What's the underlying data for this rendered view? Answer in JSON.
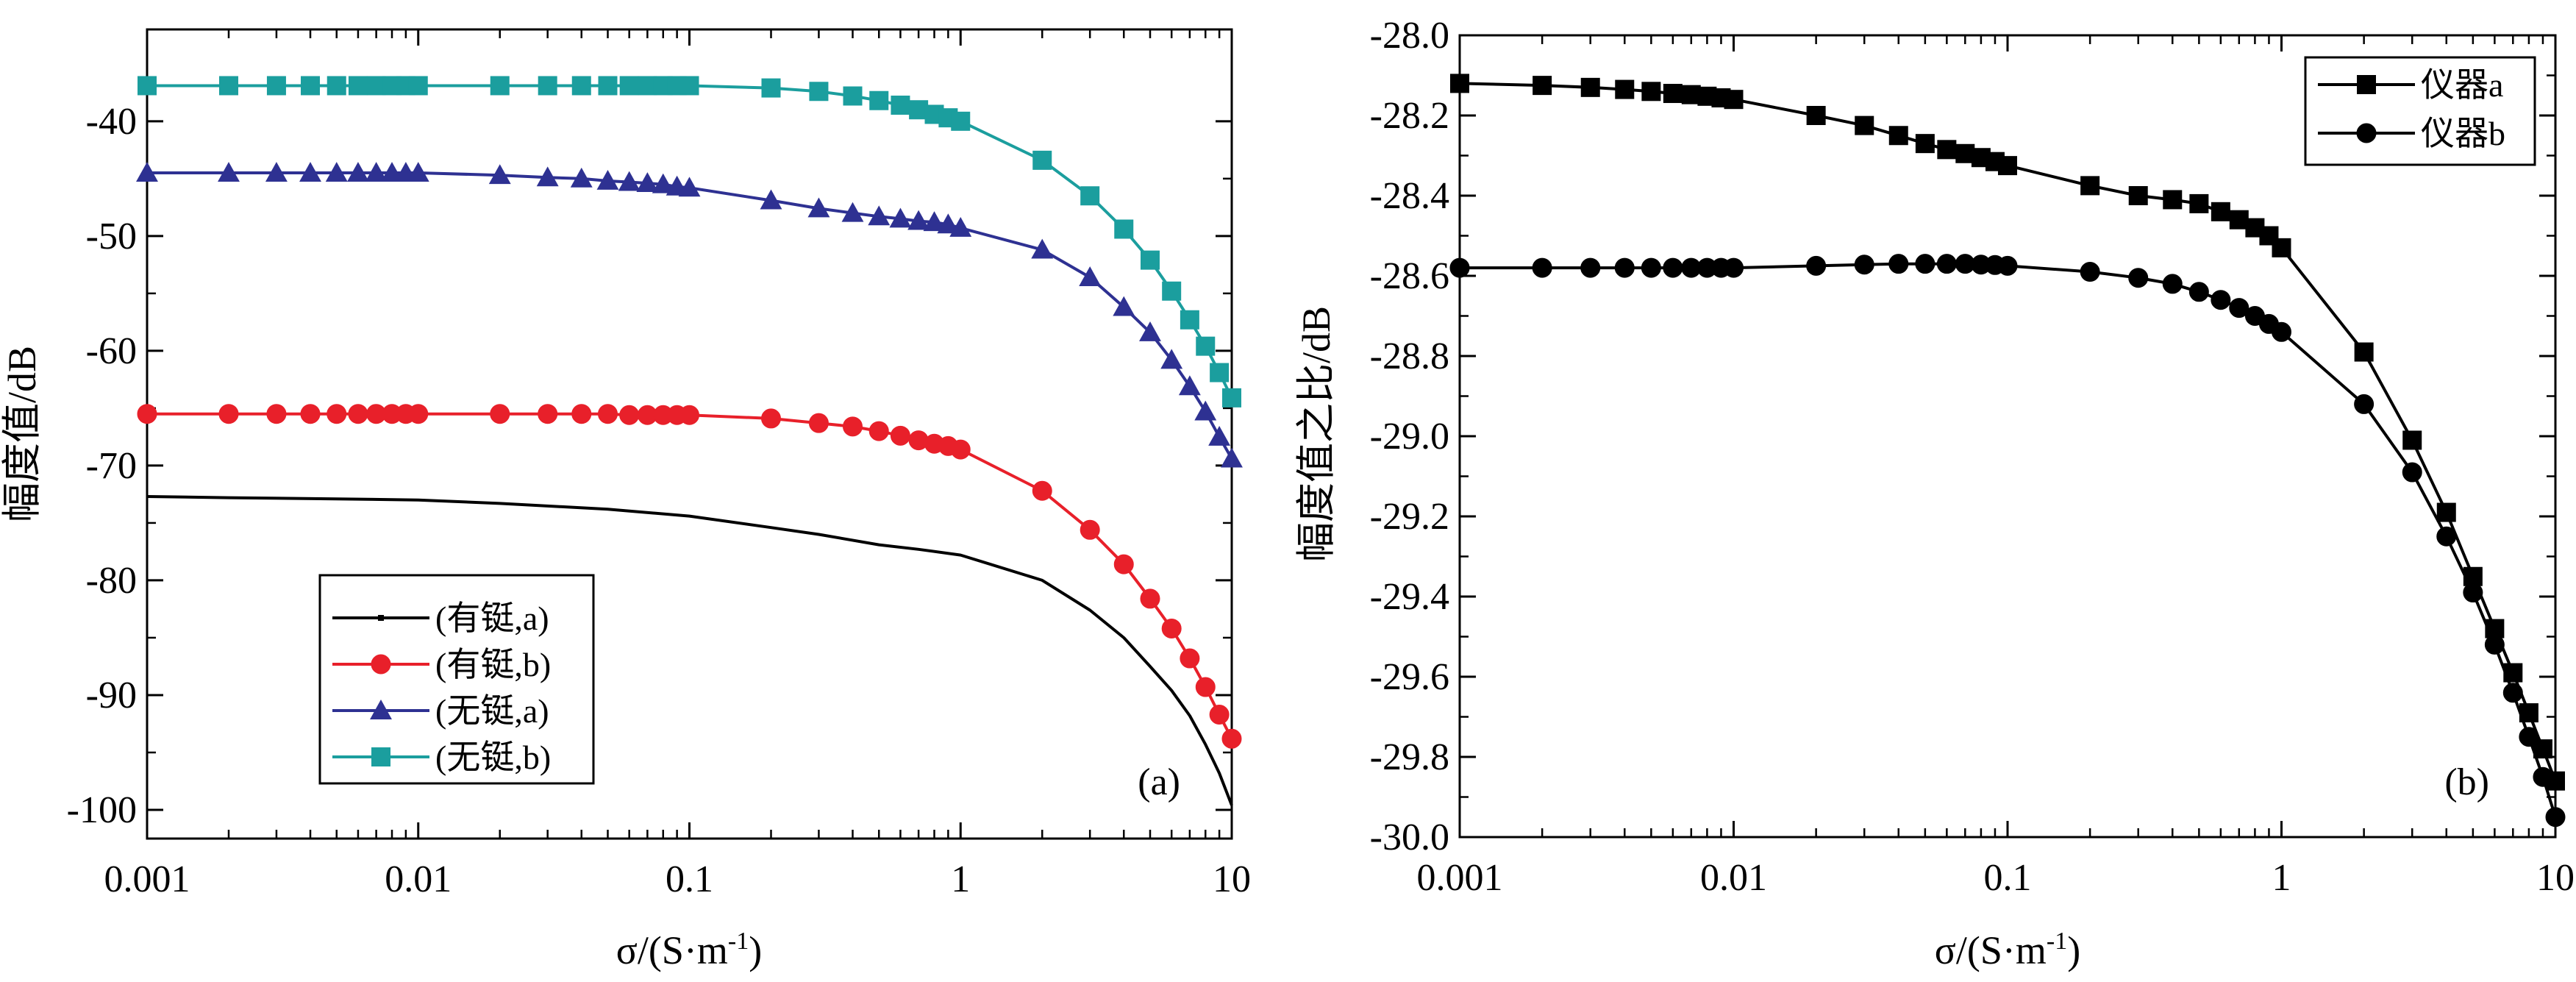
{
  "chart_data": [
    {
      "type": "line",
      "panel_label": "(a)",
      "xscale": "log",
      "xlim": [
        0.001,
        10
      ],
      "ylim": [
        -102.5,
        -32
      ],
      "xlabel_main": "σ/(S·m",
      "xlabel_sup": "-1",
      "xlabel_tail": ")",
      "ylabel": "幅度值/dB",
      "xticks": [
        0.001,
        0.01,
        0.1,
        1,
        10
      ],
      "xtick_labels": [
        "0.001",
        "0.01",
        "0.1",
        "1",
        "10"
      ],
      "yticks": [
        -100,
        -90,
        -80,
        -70,
        -60,
        -50,
        -40
      ],
      "ytick_labels": [
        "-100",
        "-90",
        "-80",
        "-70",
        "-60",
        "-50",
        "-40"
      ],
      "legend_position": "bottom-left",
      "series": [
        {
          "name": "(有铤,a)",
          "color": "#000000",
          "marker": "none",
          "x": [
            0.001,
            0.002,
            0.005,
            0.01,
            0.02,
            0.05,
            0.1,
            0.2,
            0.3,
            0.5,
            0.7,
            1,
            2,
            3,
            4,
            5,
            6,
            7,
            8,
            9,
            10
          ],
          "y": [
            -72.7,
            -72.8,
            -72.9,
            -73.0,
            -73.3,
            -73.8,
            -74.4,
            -75.4,
            -76.0,
            -76.9,
            -77.3,
            -77.8,
            -80.0,
            -82.6,
            -85.0,
            -87.5,
            -89.6,
            -91.8,
            -94.3,
            -96.8,
            -99.6
          ]
        },
        {
          "name": "(有铤,b)",
          "color": "#e8202a",
          "marker": "circle",
          "x": [
            0.001,
            0.002,
            0.003,
            0.004,
            0.005,
            0.006,
            0.007,
            0.008,
            0.009,
            0.01,
            0.02,
            0.03,
            0.04,
            0.05,
            0.06,
            0.07,
            0.08,
            0.09,
            0.1,
            0.2,
            0.3,
            0.4,
            0.5,
            0.6,
            0.7,
            0.8,
            0.9,
            1,
            2,
            3,
            4,
            5,
            6,
            7,
            8,
            9,
            10
          ],
          "y": [
            -65.5,
            -65.5,
            -65.5,
            -65.5,
            -65.5,
            -65.5,
            -65.5,
            -65.5,
            -65.5,
            -65.5,
            -65.5,
            -65.5,
            -65.5,
            -65.5,
            -65.6,
            -65.6,
            -65.6,
            -65.6,
            -65.6,
            -65.9,
            -66.3,
            -66.6,
            -67.0,
            -67.4,
            -67.8,
            -68.1,
            -68.3,
            -68.6,
            -72.2,
            -75.6,
            -78.6,
            -81.6,
            -84.2,
            -86.8,
            -89.3,
            -91.7,
            -93.8
          ]
        },
        {
          "name": "(无铤,a)",
          "color": "#2e3192",
          "marker": "triangle",
          "x": [
            0.001,
            0.002,
            0.003,
            0.004,
            0.005,
            0.006,
            0.007,
            0.008,
            0.009,
            0.01,
            0.02,
            0.03,
            0.04,
            0.05,
            0.06,
            0.07,
            0.08,
            0.09,
            0.1,
            0.2,
            0.3,
            0.4,
            0.5,
            0.6,
            0.7,
            0.8,
            0.9,
            1,
            2,
            3,
            4,
            5,
            6,
            7,
            8,
            9,
            10
          ],
          "y": [
            -44.5,
            -44.5,
            -44.5,
            -44.5,
            -44.5,
            -44.5,
            -44.5,
            -44.5,
            -44.5,
            -44.5,
            -44.7,
            -44.9,
            -45.0,
            -45.2,
            -45.3,
            -45.4,
            -45.5,
            -45.7,
            -45.8,
            -46.9,
            -47.6,
            -48.0,
            -48.3,
            -48.5,
            -48.7,
            -48.8,
            -49.0,
            -49.3,
            -51.2,
            -53.6,
            -56.2,
            -58.4,
            -60.8,
            -63.1,
            -65.3,
            -67.5,
            -69.4
          ]
        },
        {
          "name": "(无铤,b)",
          "color": "#1b9e9e",
          "marker": "square",
          "x": [
            0.001,
            0.002,
            0.003,
            0.004,
            0.005,
            0.006,
            0.007,
            0.008,
            0.009,
            0.01,
            0.02,
            0.03,
            0.04,
            0.05,
            0.06,
            0.07,
            0.08,
            0.09,
            0.1,
            0.2,
            0.3,
            0.4,
            0.5,
            0.6,
            0.7,
            0.8,
            0.9,
            1,
            2,
            3,
            4,
            5,
            6,
            7,
            8,
            9,
            10
          ],
          "y": [
            -36.9,
            -36.9,
            -36.9,
            -36.9,
            -36.9,
            -36.9,
            -36.9,
            -36.9,
            -36.9,
            -36.9,
            -36.9,
            -36.9,
            -36.9,
            -36.9,
            -36.9,
            -36.9,
            -36.9,
            -36.9,
            -36.9,
            -37.1,
            -37.4,
            -37.8,
            -38.2,
            -38.6,
            -39.0,
            -39.4,
            -39.7,
            -40.0,
            -43.4,
            -46.5,
            -49.4,
            -52.1,
            -54.8,
            -57.3,
            -59.6,
            -61.9,
            -64.1
          ]
        }
      ]
    },
    {
      "type": "line",
      "panel_label": "(b)",
      "xscale": "log",
      "xlim": [
        0.001,
        10
      ],
      "ylim": [
        -30.0,
        -28.0
      ],
      "xlabel_main": "σ/(S·m",
      "xlabel_sup": "-1",
      "xlabel_tail": ")",
      "ylabel": "幅度值之比/dB",
      "xticks": [
        0.001,
        0.01,
        0.1,
        1,
        10
      ],
      "xtick_labels": [
        "0.001",
        "0.01",
        "0.1",
        "1",
        "10"
      ],
      "yticks": [
        -30.0,
        -29.8,
        -29.6,
        -29.4,
        -29.2,
        -29.0,
        -28.8,
        -28.6,
        -28.4,
        -28.2,
        -28.0
      ],
      "ytick_labels": [
        "-30.0",
        "-29.8",
        "-29.6",
        "-29.4",
        "-29.2",
        "-29.0",
        "-28.8",
        "-28.6",
        "-28.4",
        "-28.2",
        "-28.0"
      ],
      "legend_position": "top-right",
      "series": [
        {
          "name": "仪器a",
          "color": "#000000",
          "marker": "square",
          "x": [
            0.001,
            0.002,
            0.003,
            0.004,
            0.005,
            0.006,
            0.007,
            0.008,
            0.009,
            0.01,
            0.02,
            0.03,
            0.04,
            0.05,
            0.06,
            0.07,
            0.08,
            0.09,
            0.1,
            0.2,
            0.3,
            0.4,
            0.5,
            0.6,
            0.7,
            0.8,
            0.9,
            1,
            2,
            3,
            4,
            5,
            6,
            7,
            8,
            9,
            10
          ],
          "y": [
            -28.12,
            -28.125,
            -28.13,
            -28.135,
            -28.14,
            -28.145,
            -28.148,
            -28.152,
            -28.156,
            -28.16,
            -28.2,
            -28.225,
            -28.25,
            -28.27,
            -28.285,
            -28.295,
            -28.305,
            -28.315,
            -28.325,
            -28.375,
            -28.4,
            -28.41,
            -28.42,
            -28.44,
            -28.46,
            -28.48,
            -28.5,
            -28.53,
            -28.79,
            -29.01,
            -29.19,
            -29.35,
            -29.48,
            -29.59,
            -29.69,
            -29.78,
            -29.86
          ]
        },
        {
          "name": "仪器b",
          "color": "#000000",
          "marker": "circle",
          "x": [
            0.001,
            0.002,
            0.003,
            0.004,
            0.005,
            0.006,
            0.007,
            0.008,
            0.009,
            0.01,
            0.02,
            0.03,
            0.04,
            0.05,
            0.06,
            0.07,
            0.08,
            0.09,
            0.1,
            0.2,
            0.3,
            0.4,
            0.5,
            0.6,
            0.7,
            0.8,
            0.9,
            1,
            2,
            3,
            4,
            5,
            6,
            7,
            8,
            9,
            10
          ],
          "y": [
            -28.58,
            -28.58,
            -28.58,
            -28.58,
            -28.58,
            -28.58,
            -28.58,
            -28.58,
            -28.58,
            -28.58,
            -28.575,
            -28.572,
            -28.57,
            -28.57,
            -28.57,
            -28.57,
            -28.572,
            -28.573,
            -28.575,
            -28.59,
            -28.605,
            -28.62,
            -28.64,
            -28.66,
            -28.68,
            -28.7,
            -28.72,
            -28.74,
            -28.92,
            -29.09,
            -29.25,
            -29.39,
            -29.52,
            -29.64,
            -29.75,
            -29.85,
            -29.95
          ]
        }
      ]
    }
  ]
}
